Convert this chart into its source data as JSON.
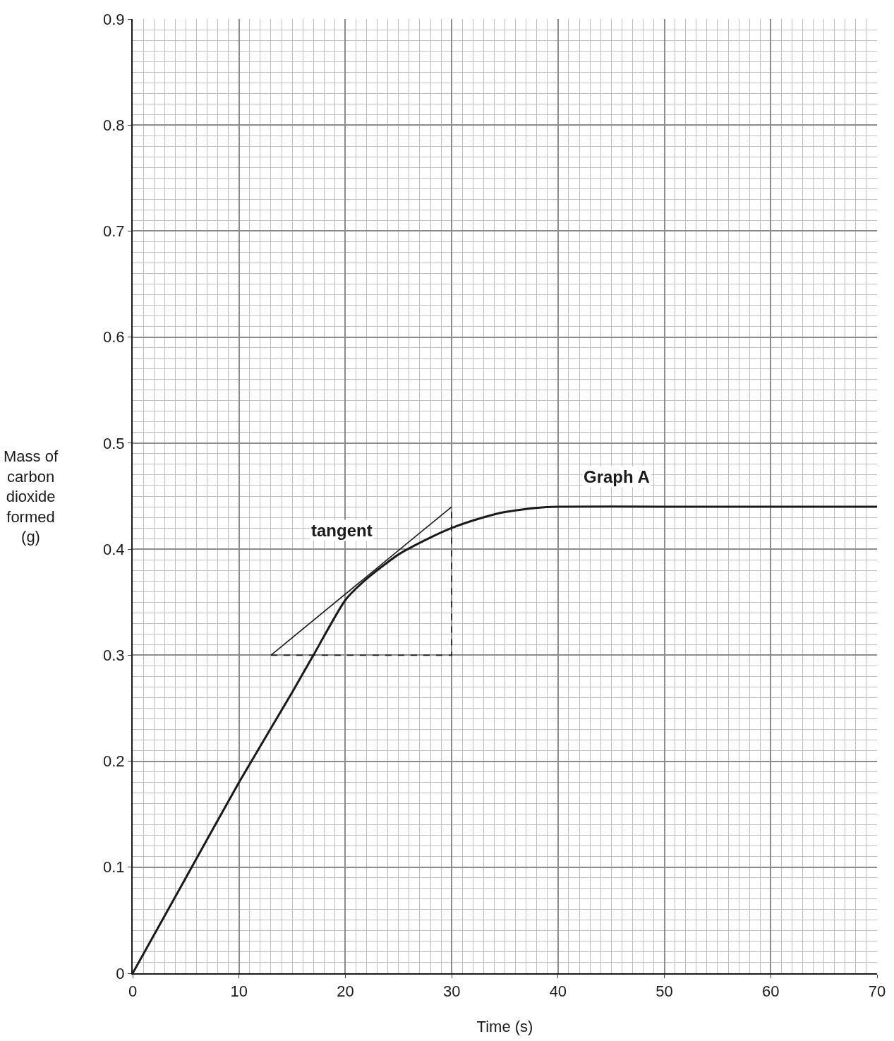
{
  "chart_data": {
    "type": "line",
    "xlabel": "Time (s)",
    "ylabel": "Mass of\ncarbon\ndioxide\nformed\n(g)",
    "series": [
      {
        "color": "#1a1a1a",
        "x": [
          0,
          5,
          10,
          15,
          17,
          20,
          22,
          25,
          28,
          30,
          33,
          35,
          38,
          40,
          50,
          60,
          70
        ],
        "values": [
          0,
          0.09,
          0.18,
          0.265,
          0.3,
          0.352,
          0.372,
          0.395,
          0.411,
          0.42,
          0.43,
          0.435,
          0.439,
          0.44,
          0.44,
          0.44,
          0.44
        ]
      },
      {
        "color": "#1a1a1a",
        "x": [
          13,
          30
        ],
        "values": [
          0.3,
          0.44
        ]
      },
      {
        "color": "#1a1a1a",
        "x": [
          13,
          30,
          30
        ],
        "values": [
          0.3,
          0.3,
          0.44
        ],
        "line_style": "dashed"
      }
    ],
    "annotations": [
      "tangent",
      "Graph A"
    ],
    "xlim": [
      0,
      70
    ],
    "xticks": [
      0,
      10,
      20,
      30,
      40,
      50,
      60,
      70
    ],
    "ylim": [
      0,
      0.9
    ],
    "yticks": [
      0,
      0.1,
      0.2,
      0.3,
      0.4,
      0.5,
      0.6,
      0.7,
      0.8,
      0.9
    ],
    "grid": true,
    "marker": "none",
    "line_style": "solid"
  }
}
